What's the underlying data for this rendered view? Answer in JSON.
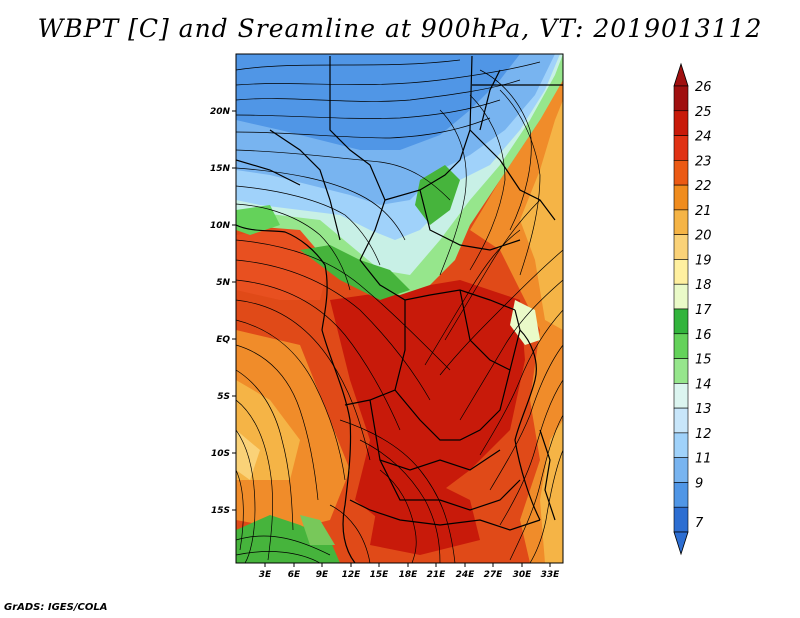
{
  "title": "WBPT [C] and Sreamline at 900hPa, VT: 2019013112",
  "credit": "GrADS: IGES/COLA",
  "map": {
    "lat_labels": [
      "20N",
      "15N",
      "10N",
      "5N",
      "EQ",
      "5S",
      "10S",
      "15S"
    ],
    "lon_labels": [
      "3E",
      "6E",
      "9E",
      "12E",
      "15E",
      "18E",
      "21E",
      "24E",
      "27E",
      "30E",
      "33E"
    ]
  },
  "colorbar": {
    "levels": [
      "26",
      "25",
      "24",
      "23",
      "22",
      "21",
      "20",
      "19",
      "18",
      "17",
      "16",
      "15",
      "14",
      "13",
      "12",
      "11",
      "9",
      "7"
    ],
    "colors": [
      "#a01010",
      "#c81a0a",
      "#e03214",
      "#eb5a14",
      "#f08c1e",
      "#f5b446",
      "#fad278",
      "#fff0a0",
      "#eafac8",
      "#32b43c",
      "#64d25a",
      "#96e68c",
      "#dcf5f0",
      "#c8e6fa",
      "#a0d2fa",
      "#78b4f0",
      "#5096e6",
      "#2d6ed2"
    ]
  }
}
